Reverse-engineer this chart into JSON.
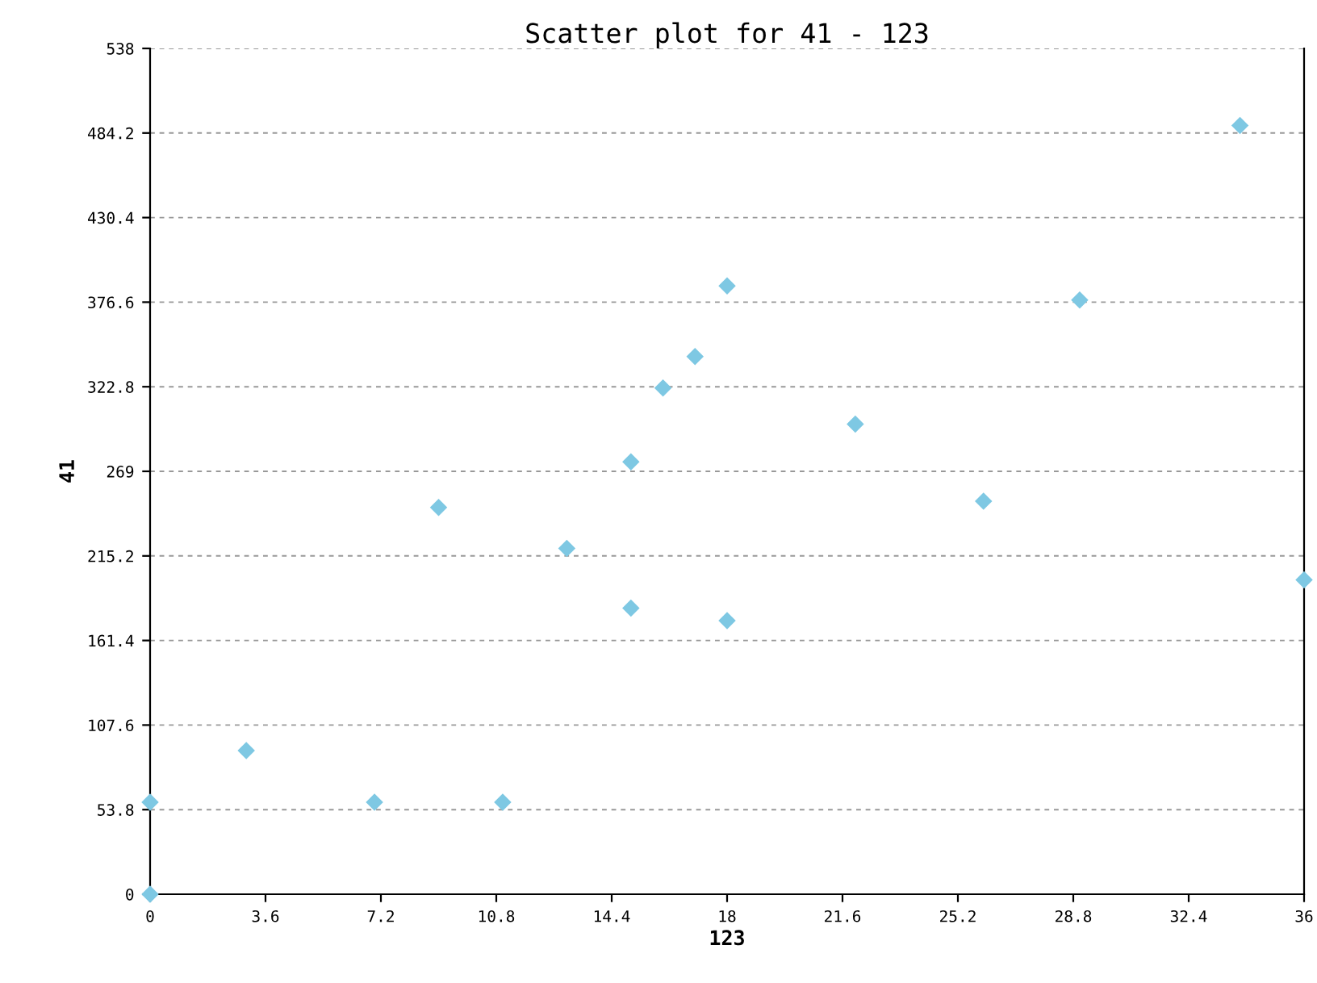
{
  "chart_data": {
    "type": "scatter",
    "title": "Scatter plot for 41 - 123",
    "xlabel": "123",
    "ylabel": "41",
    "x": [
      0,
      0,
      3,
      7,
      9,
      11,
      13,
      15,
      15,
      16,
      17,
      18,
      18,
      22,
      26,
      29,
      34,
      36
    ],
    "values": [
      58.5,
      0,
      91.4,
      58.5,
      246,
      58.5,
      220,
      275,
      182,
      322,
      342,
      387,
      174,
      299,
      250,
      378,
      489,
      200
    ],
    "color": "#7ec8e3",
    "marker": "diamond",
    "grid": "y",
    "xlim": [
      0,
      36
    ],
    "xticks": [
      0,
      3.6,
      7.2,
      10.8,
      14.4,
      18,
      21.6,
      25.2,
      28.8,
      32.4,
      36
    ],
    "ylim": [
      0,
      538
    ],
    "yticks": [
      0,
      53.8,
      107.6,
      161.4,
      215.2,
      269,
      322.8,
      376.6,
      430.4,
      484.2,
      538
    ]
  }
}
